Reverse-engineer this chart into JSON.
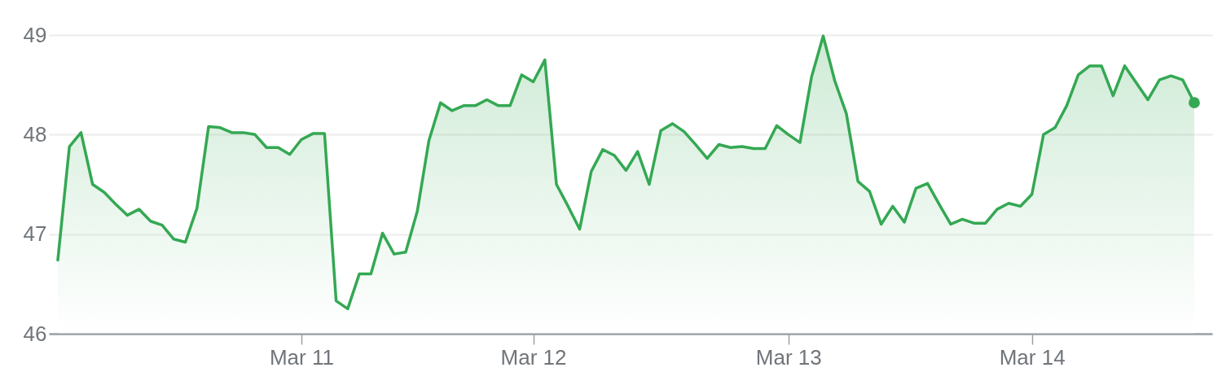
{
  "chart_data": {
    "type": "area",
    "categories": [
      null,
      null,
      null,
      null,
      null,
      null,
      null,
      null,
      null,
      null,
      null,
      null,
      null,
      null,
      null,
      null,
      null,
      null,
      null,
      null,
      null,
      "Mar 11",
      null,
      null,
      null,
      null,
      null,
      null,
      null,
      null,
      null,
      null,
      null,
      null,
      null,
      null,
      null,
      null,
      null,
      null,
      null,
      "Mar 12",
      null,
      null,
      null,
      null,
      null,
      null,
      null,
      null,
      null,
      null,
      null,
      null,
      null,
      null,
      null,
      null,
      null,
      null,
      null,
      null,
      null,
      "Mar 13",
      null,
      null,
      null,
      null,
      null,
      null,
      null,
      null,
      null,
      null,
      null,
      null,
      null,
      null,
      null,
      null,
      null,
      null,
      null,
      null,
      "Mar 14",
      null,
      null,
      null,
      null,
      null,
      null,
      null,
      null,
      null,
      null,
      null,
      null,
      null,
      null
    ],
    "series": [
      {
        "color": "#34a853",
        "values": [
          46.74,
          47.88,
          48.02,
          47.5,
          47.42,
          47.3,
          47.19,
          47.25,
          47.13,
          47.09,
          46.95,
          46.92,
          47.26,
          48.08,
          48.07,
          48.02,
          48.02,
          48.0,
          47.87,
          47.87,
          47.8,
          47.95,
          48.01,
          48.01,
          46.33,
          46.25,
          46.6,
          46.6,
          47.01,
          46.8,
          46.82,
          47.23,
          47.94,
          48.32,
          48.24,
          48.29,
          48.29,
          48.35,
          48.29,
          48.29,
          48.6,
          48.53,
          48.75,
          47.5,
          47.28,
          47.05,
          47.63,
          47.85,
          47.79,
          47.64,
          47.83,
          47.5,
          48.04,
          48.11,
          48.03,
          47.9,
          47.76,
          47.9,
          47.87,
          47.88,
          47.86,
          47.86,
          48.09,
          48.0,
          47.92,
          48.58,
          48.99,
          48.54,
          48.21,
          47.53,
          47.43,
          47.1,
          47.28,
          47.12,
          47.46,
          47.51,
          47.3,
          47.1,
          47.15,
          47.11,
          47.11,
          47.25,
          47.31,
          47.28,
          47.4,
          48.0,
          48.07,
          48.29,
          48.6,
          48.69,
          48.69,
          48.39,
          48.69,
          48.52,
          48.35,
          48.55,
          48.59,
          48.55,
          48.32
        ]
      },
      {
        "type": "scatter",
        "marker": "circle",
        "color": "#34a853",
        "values": [
          null,
          null,
          null,
          null,
          null,
          null,
          null,
          null,
          null,
          null,
          null,
          null,
          null,
          null,
          null,
          null,
          null,
          null,
          null,
          null,
          null,
          null,
          null,
          null,
          null,
          null,
          null,
          null,
          null,
          null,
          null,
          null,
          null,
          null,
          null,
          null,
          null,
          null,
          null,
          null,
          null,
          null,
          null,
          null,
          null,
          null,
          null,
          null,
          null,
          null,
          null,
          null,
          null,
          null,
          null,
          null,
          null,
          null,
          null,
          null,
          null,
          null,
          null,
          null,
          null,
          null,
          null,
          null,
          null,
          null,
          null,
          null,
          null,
          null,
          null,
          null,
          null,
          null,
          null,
          null,
          null,
          null,
          null,
          null,
          null,
          null,
          null,
          null,
          null,
          null,
          null,
          null,
          null,
          null,
          null,
          null,
          null,
          null,
          48.32
        ]
      }
    ],
    "ylim": [
      46,
      49
    ],
    "yticks": [
      46,
      47,
      48,
      49
    ],
    "grid": "y"
  }
}
